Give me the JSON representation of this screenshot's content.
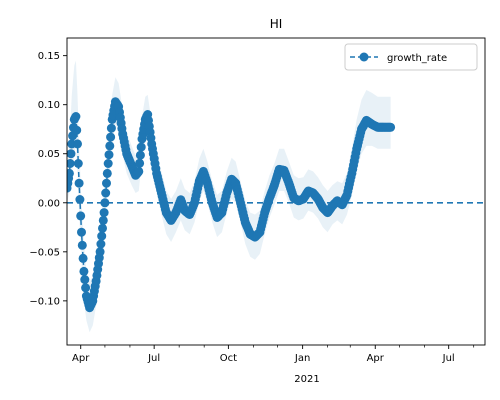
{
  "chart_data": {
    "type": "line",
    "title": "HI",
    "xlabel": "",
    "ylabel": "",
    "x_year_label": "2021",
    "x_range": [
      "2020-03-15",
      "2021-08-15"
    ],
    "ylim": [
      -0.145,
      0.168
    ],
    "y_ticks": [
      -0.1,
      -0.05,
      0.0,
      0.05,
      0.1,
      0.15
    ],
    "y_tick_labels": [
      "−0.10",
      "−0.05",
      "0.00",
      "0.05",
      "0.10",
      "0.15"
    ],
    "x_major_ticks": [
      {
        "date": "2020-04-01",
        "label": "Apr"
      },
      {
        "date": "2020-07-01",
        "label": "Jul"
      },
      {
        "date": "2020-10-01",
        "label": "Oct"
      },
      {
        "date": "2021-01-01",
        "label": "Jan"
      },
      {
        "date": "2021-04-01",
        "label": "Apr"
      },
      {
        "date": "2021-07-01",
        "label": "Jul"
      }
    ],
    "x_minor_ticks": [
      "2020-05-01",
      "2020-06-01",
      "2020-08-01",
      "2020-09-01",
      "2020-11-01",
      "2020-12-01",
      "2021-02-01",
      "2021-03-01",
      "2021-05-01",
      "2021-06-01",
      "2021-08-01"
    ],
    "grid": false,
    "legend": {
      "placement": "top-right",
      "entries": [
        "growth_rate"
      ]
    },
    "reference_line": {
      "y": 0,
      "style": "dashed"
    },
    "series": [
      {
        "name": "growth_rate",
        "color": "#1f77b4",
        "band_color": "#1f77b4",
        "points": [
          {
            "x": "2020-03-15",
            "y": 0.015,
            "lo": 0.0,
            "hi": 0.03
          },
          {
            "x": "2020-03-18",
            "y": 0.03,
            "lo": 0.01,
            "hi": 0.06
          },
          {
            "x": "2020-03-21",
            "y": 0.06,
            "lo": 0.03,
            "hi": 0.11
          },
          {
            "x": "2020-03-24",
            "y": 0.085,
            "lo": 0.05,
            "hi": 0.14
          },
          {
            "x": "2020-03-26",
            "y": 0.088,
            "lo": 0.06,
            "hi": 0.145
          },
          {
            "x": "2020-03-28",
            "y": 0.06,
            "lo": 0.03,
            "hi": 0.11
          },
          {
            "x": "2020-03-30",
            "y": 0.02,
            "lo": -0.01,
            "hi": 0.06
          },
          {
            "x": "2020-04-02",
            "y": -0.03,
            "lo": -0.06,
            "hi": 0.0
          },
          {
            "x": "2020-04-05",
            "y": -0.07,
            "lo": -0.1,
            "hi": -0.04
          },
          {
            "x": "2020-04-08",
            "y": -0.095,
            "lo": -0.12,
            "hi": -0.07
          },
          {
            "x": "2020-04-12",
            "y": -0.107,
            "lo": -0.132,
            "hi": -0.08
          },
          {
            "x": "2020-04-16",
            "y": -0.1,
            "lo": -0.125,
            "hi": -0.075
          },
          {
            "x": "2020-04-20",
            "y": -0.08,
            "lo": -0.105,
            "hi": -0.055
          },
          {
            "x": "2020-04-25",
            "y": -0.05,
            "lo": -0.075,
            "hi": -0.025
          },
          {
            "x": "2020-04-30",
            "y": -0.01,
            "lo": -0.035,
            "hi": 0.015
          },
          {
            "x": "2020-05-05",
            "y": 0.04,
            "lo": 0.015,
            "hi": 0.065
          },
          {
            "x": "2020-05-10",
            "y": 0.085,
            "lo": 0.06,
            "hi": 0.11
          },
          {
            "x": "2020-05-14",
            "y": 0.103,
            "lo": 0.08,
            "hi": 0.128
          },
          {
            "x": "2020-05-18",
            "y": 0.098,
            "lo": 0.075,
            "hi": 0.122
          },
          {
            "x": "2020-05-23",
            "y": 0.07,
            "lo": 0.048,
            "hi": 0.095
          },
          {
            "x": "2020-05-28",
            "y": 0.05,
            "lo": 0.03,
            "hi": 0.072
          },
          {
            "x": "2020-06-03",
            "y": 0.038,
            "lo": 0.018,
            "hi": 0.058
          },
          {
            "x": "2020-06-08",
            "y": 0.028,
            "lo": 0.01,
            "hi": 0.048
          },
          {
            "x": "2020-06-12",
            "y": 0.032,
            "lo": 0.012,
            "hi": 0.052
          },
          {
            "x": "2020-06-16",
            "y": 0.065,
            "lo": 0.045,
            "hi": 0.088
          },
          {
            "x": "2020-06-20",
            "y": 0.085,
            "lo": 0.065,
            "hi": 0.108
          },
          {
            "x": "2020-06-23",
            "y": 0.09,
            "lo": 0.07,
            "hi": 0.11
          },
          {
            "x": "2020-06-28",
            "y": 0.06,
            "lo": 0.04,
            "hi": 0.082
          },
          {
            "x": "2020-07-04",
            "y": 0.03,
            "lo": 0.01,
            "hi": 0.052
          },
          {
            "x": "2020-07-10",
            "y": 0.01,
            "lo": -0.012,
            "hi": 0.032
          },
          {
            "x": "2020-07-16",
            "y": -0.01,
            "lo": -0.032,
            "hi": 0.012
          },
          {
            "x": "2020-07-22",
            "y": -0.018,
            "lo": -0.04,
            "hi": 0.004
          },
          {
            "x": "2020-07-28",
            "y": -0.01,
            "lo": -0.03,
            "hi": 0.012
          },
          {
            "x": "2020-08-03",
            "y": 0.003,
            "lo": -0.018,
            "hi": 0.025
          },
          {
            "x": "2020-08-08",
            "y": -0.008,
            "lo": -0.028,
            "hi": 0.014
          },
          {
            "x": "2020-08-14",
            "y": -0.012,
            "lo": -0.032,
            "hi": 0.01
          },
          {
            "x": "2020-08-20",
            "y": 0.0,
            "lo": -0.02,
            "hi": 0.022
          },
          {
            "x": "2020-08-26",
            "y": 0.022,
            "lo": 0.002,
            "hi": 0.045
          },
          {
            "x": "2020-08-31",
            "y": 0.032,
            "lo": 0.012,
            "hi": 0.055
          },
          {
            "x": "2020-09-05",
            "y": 0.02,
            "lo": 0.0,
            "hi": 0.042
          },
          {
            "x": "2020-09-11",
            "y": 0.0,
            "lo": -0.02,
            "hi": 0.022
          },
          {
            "x": "2020-09-17",
            "y": -0.015,
            "lo": -0.035,
            "hi": 0.008
          },
          {
            "x": "2020-09-23",
            "y": -0.01,
            "lo": -0.03,
            "hi": 0.012
          },
          {
            "x": "2020-09-29",
            "y": 0.01,
            "lo": -0.01,
            "hi": 0.032
          },
          {
            "x": "2020-10-05",
            "y": 0.024,
            "lo": 0.004,
            "hi": 0.046
          },
          {
            "x": "2020-10-10",
            "y": 0.02,
            "lo": 0.0,
            "hi": 0.042
          },
          {
            "x": "2020-10-16",
            "y": 0.0,
            "lo": -0.02,
            "hi": 0.022
          },
          {
            "x": "2020-10-22",
            "y": -0.02,
            "lo": -0.042,
            "hi": 0.002
          },
          {
            "x": "2020-10-28",
            "y": -0.032,
            "lo": -0.055,
            "hi": -0.01
          },
          {
            "x": "2020-11-03",
            "y": -0.035,
            "lo": -0.058,
            "hi": -0.012
          },
          {
            "x": "2020-11-09",
            "y": -0.03,
            "lo": -0.052,
            "hi": -0.008
          },
          {
            "x": "2020-11-15",
            "y": -0.01,
            "lo": -0.032,
            "hi": 0.012
          },
          {
            "x": "2020-11-21",
            "y": 0.005,
            "lo": -0.015,
            "hi": 0.028
          },
          {
            "x": "2020-11-27",
            "y": 0.018,
            "lo": -0.002,
            "hi": 0.04
          },
          {
            "x": "2020-12-03",
            "y": 0.034,
            "lo": 0.012,
            "hi": 0.055
          },
          {
            "x": "2020-12-09",
            "y": 0.033,
            "lo": 0.012,
            "hi": 0.055
          },
          {
            "x": "2020-12-15",
            "y": 0.02,
            "lo": 0.0,
            "hi": 0.042
          },
          {
            "x": "2020-12-21",
            "y": 0.005,
            "lo": -0.015,
            "hi": 0.028
          },
          {
            "x": "2020-12-27",
            "y": 0.002,
            "lo": -0.018,
            "hi": 0.025
          },
          {
            "x": "2021-01-02",
            "y": 0.004,
            "lo": -0.016,
            "hi": 0.026
          },
          {
            "x": "2021-01-08",
            "y": 0.012,
            "lo": -0.008,
            "hi": 0.034
          },
          {
            "x": "2021-01-14",
            "y": 0.01,
            "lo": -0.01,
            "hi": 0.032
          },
          {
            "x": "2021-01-20",
            "y": 0.004,
            "lo": -0.016,
            "hi": 0.026
          },
          {
            "x": "2021-01-26",
            "y": -0.005,
            "lo": -0.025,
            "hi": 0.018
          },
          {
            "x": "2021-02-01",
            "y": -0.01,
            "lo": -0.03,
            "hi": 0.012
          },
          {
            "x": "2021-02-07",
            "y": -0.003,
            "lo": -0.022,
            "hi": 0.018
          },
          {
            "x": "2021-02-13",
            "y": 0.002,
            "lo": -0.018,
            "hi": 0.022
          },
          {
            "x": "2021-02-19",
            "y": -0.002,
            "lo": -0.022,
            "hi": 0.02
          },
          {
            "x": "2021-02-25",
            "y": 0.008,
            "lo": -0.012,
            "hi": 0.03
          },
          {
            "x": "2021-03-03",
            "y": 0.03,
            "lo": 0.008,
            "hi": 0.055
          },
          {
            "x": "2021-03-09",
            "y": 0.055,
            "lo": 0.032,
            "hi": 0.085
          },
          {
            "x": "2021-03-15",
            "y": 0.075,
            "lo": 0.05,
            "hi": 0.105
          },
          {
            "x": "2021-03-21",
            "y": 0.084,
            "lo": 0.058,
            "hi": 0.115
          },
          {
            "x": "2021-03-28",
            "y": 0.08,
            "lo": 0.058,
            "hi": 0.112
          },
          {
            "x": "2021-04-04",
            "y": 0.077,
            "lo": 0.055,
            "hi": 0.108
          },
          {
            "x": "2021-04-12",
            "y": 0.077,
            "lo": 0.055,
            "hi": 0.108
          },
          {
            "x": "2021-04-20",
            "y": 0.077,
            "lo": 0.055,
            "hi": 0.108
          }
        ]
      }
    ]
  }
}
